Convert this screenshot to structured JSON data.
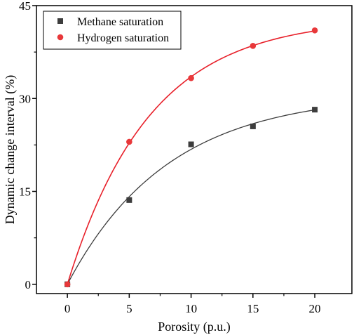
{
  "chart_data": {
    "type": "scatter",
    "xlabel": "Porosity (p.u.)",
    "ylabel": "Dynamic change interval (%)",
    "xlim": [
      -2.5,
      23
    ],
    "ylim": [
      -1.5,
      45
    ],
    "xticks": [
      0,
      5,
      10,
      15,
      20
    ],
    "yticks": [
      0,
      15,
      30,
      45
    ],
    "grid": false,
    "legend_position": "top-left",
    "series": [
      {
        "name": "Methane saturation",
        "marker": "square",
        "color": "#3d3d3d",
        "fit_color": "#3d3d3d",
        "x": [
          0,
          5,
          10,
          15,
          20
        ],
        "y": [
          0,
          13.6,
          22.6,
          25.5,
          28.2
        ]
      },
      {
        "name": "Hydrogen saturation",
        "marker": "circle",
        "color": "#e8383a",
        "fit_color": "#e8202a",
        "x": [
          0,
          5,
          10,
          15,
          20
        ],
        "y": [
          0,
          23,
          33.3,
          38.5,
          41
        ]
      }
    ]
  }
}
